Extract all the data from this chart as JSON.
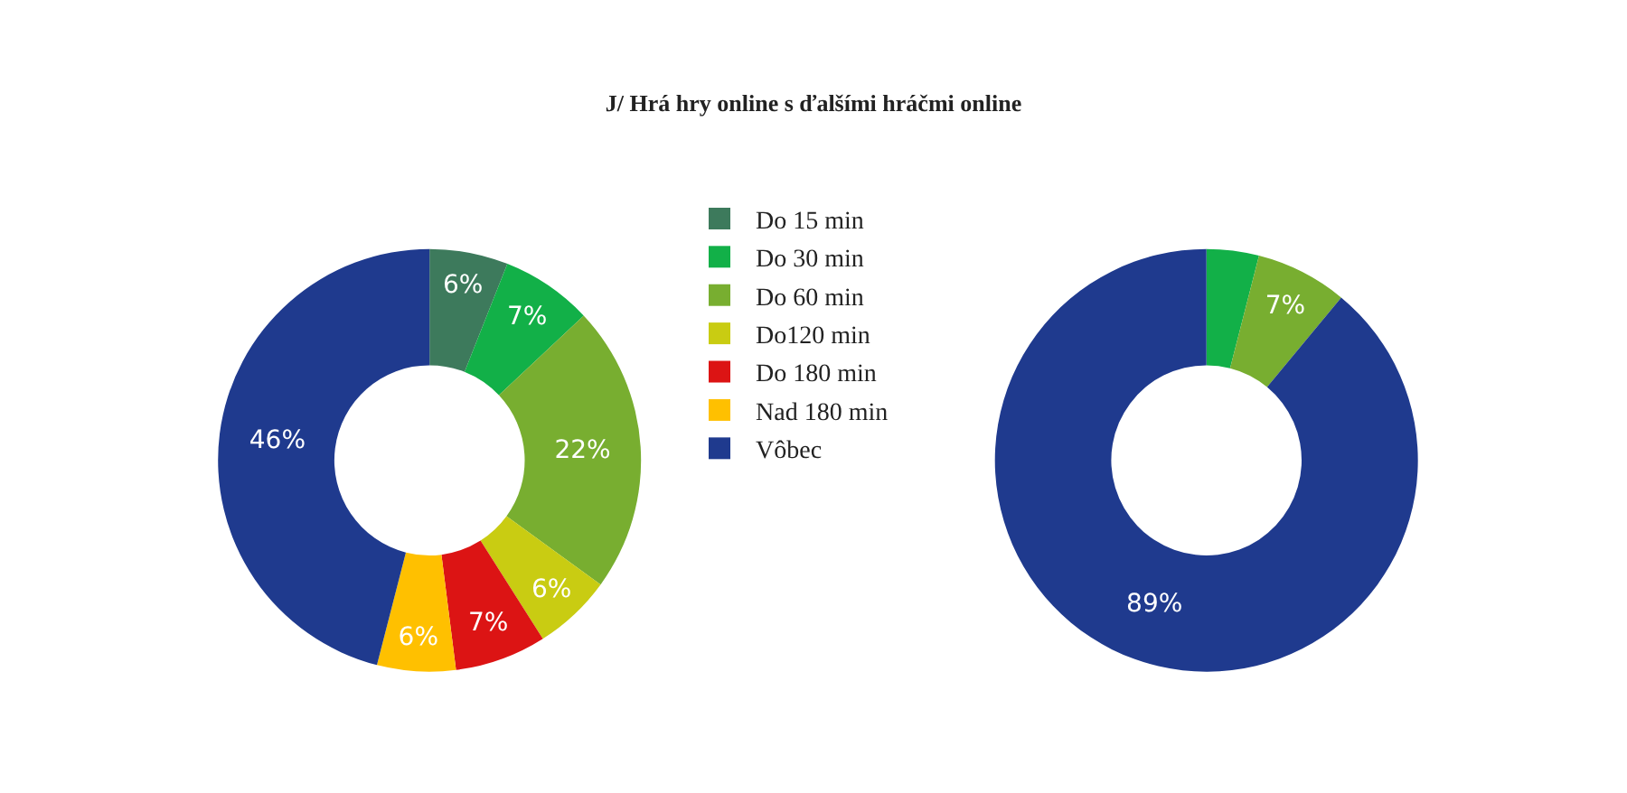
{
  "chart_data": {
    "type": "donut",
    "title": "J/ Hrá hry online s ďalšími hráčmi online",
    "categories": [
      "Do 15 min",
      "Do 30 min",
      "Do 60 min",
      "Do120 min",
      "Do 180 min",
      "Nad 180 min",
      "Vôbec"
    ],
    "legend": "right",
    "series": [
      {
        "values": [
          6,
          7,
          22,
          6,
          7,
          6,
          46
        ],
        "value_labels": [
          "6%",
          "7%",
          "22%",
          "6%",
          "7%",
          "6%",
          "46%"
        ],
        "colors": [
          "#3d7a5c",
          "#12b048",
          "#78ae30",
          "#c9cc12",
          "#dc1414",
          "#ffc000",
          "#1f3a8e"
        ]
      },
      {
        "values": [
          0,
          4,
          7,
          0,
          0,
          0,
          89
        ],
        "value_labels": [
          null,
          null,
          "7%",
          null,
          null,
          null,
          "89%"
        ],
        "colors": [
          "#3d7a5c",
          "#12b048",
          "#78ae30",
          "#c9cc12",
          "#dc1414",
          "#ffc000",
          "#1f3a8e"
        ]
      }
    ]
  }
}
